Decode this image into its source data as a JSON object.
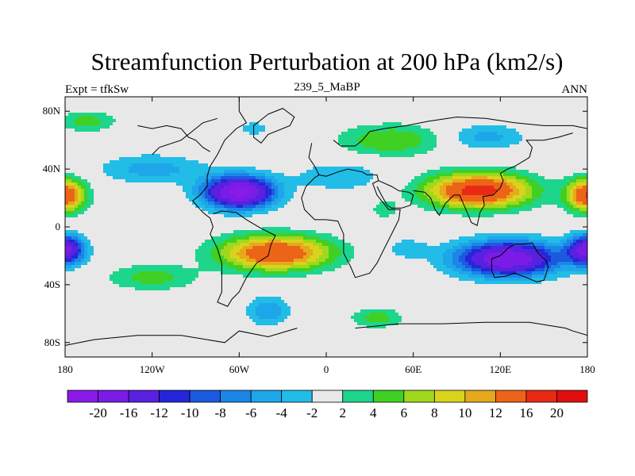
{
  "chart_data": {
    "type": "heatmap",
    "title": "Streamfunction Perturbation at 200 hPa (km2/s)",
    "subtitle_left": "Expt = tfkSw",
    "subtitle_center": "239_5_MaBP",
    "subtitle_right": "ANN",
    "xlim": [
      -180,
      180
    ],
    "ylim": [
      -90,
      90
    ],
    "x_ticks": [
      {
        "value": -180,
        "label": "180"
      },
      {
        "value": -120,
        "label": "120W"
      },
      {
        "value": -60,
        "label": "60W"
      },
      {
        "value": 0,
        "label": "0"
      },
      {
        "value": 60,
        "label": "60E"
      },
      {
        "value": 120,
        "label": "120E"
      },
      {
        "value": 180,
        "label": "180"
      }
    ],
    "y_ticks": [
      {
        "value": 80,
        "label": "80N"
      },
      {
        "value": 40,
        "label": "40N"
      },
      {
        "value": 0,
        "label": "0"
      },
      {
        "value": -40,
        "label": "40S"
      },
      {
        "value": -80,
        "label": "80S"
      }
    ],
    "contour_levels": [
      -20,
      -16,
      -12,
      -10,
      -8,
      -6,
      -4,
      -2,
      2,
      4,
      6,
      8,
      10,
      12,
      16,
      20
    ],
    "colorbar_labels": [
      "-20",
      "-16",
      "-12",
      "-10",
      "-8",
      "-6",
      "-4",
      "-2",
      "2",
      "4",
      "6",
      "8",
      "10",
      "12",
      "16",
      "20"
    ],
    "colorbar_colors": [
      "#8a1ae8",
      "#7a1ce6",
      "#5a20e0",
      "#2426d8",
      "#1a5ae0",
      "#1c86e8",
      "#1ea6ea",
      "#22bde6",
      "#e8e8e8",
      "#1ed58c",
      "#40d024",
      "#a0d81e",
      "#d8d41c",
      "#e6a81c",
      "#ec6418",
      "#e82a14",
      "#e00e0e"
    ],
    "anomalies": [
      {
        "lon": -60,
        "lat": 24,
        "amp": -22,
        "sx": 24,
        "sy": 11
      },
      {
        "lon": 105,
        "lat": 25,
        "amp": 18,
        "sx": 36,
        "sy": 12
      },
      {
        "lon": 125,
        "lat": -22,
        "amp": -20,
        "sx": 35,
        "sy": 12
      },
      {
        "lon": -35,
        "lat": -18,
        "amp": 16,
        "sx": 38,
        "sy": 12
      },
      {
        "lon": -180,
        "lat": 22,
        "amp": 16,
        "sx": 14,
        "sy": 11
      },
      {
        "lon": 180,
        "lat": 22,
        "amp": 16,
        "sx": 14,
        "sy": 11
      },
      {
        "lon": -180,
        "lat": -16,
        "amp": -18,
        "sx": 13,
        "sy": 10
      },
      {
        "lon": 180,
        "lat": -16,
        "amp": -18,
        "sx": 13,
        "sy": 10
      },
      {
        "lon": -165,
        "lat": 73,
        "amp": 5,
        "sx": 20,
        "sy": 7
      },
      {
        "lon": 45,
        "lat": 60,
        "amp": 6,
        "sx": 36,
        "sy": 11
      },
      {
        "lon": 110,
        "lat": 62,
        "amp": -5,
        "sx": 26,
        "sy": 9
      },
      {
        "lon": -50,
        "lat": 68,
        "amp": -3.6,
        "sx": 10,
        "sy": 5
      },
      {
        "lon": -40,
        "lat": -58,
        "amp": -6,
        "sx": 14,
        "sy": 10
      },
      {
        "lon": 35,
        "lat": -63,
        "amp": 5,
        "sx": 18,
        "sy": 7
      },
      {
        "lon": -120,
        "lat": 40,
        "amp": -5,
        "sx": 36,
        "sy": 10
      },
      {
        "lon": 10,
        "lat": 35,
        "amp": -4,
        "sx": 30,
        "sy": 10
      },
      {
        "lon": -120,
        "lat": -35,
        "amp": 5,
        "sx": 30,
        "sy": 9
      },
      {
        "lon": 40,
        "lat": 12,
        "amp": 3,
        "sx": 10,
        "sy": 7
      },
      {
        "lon": 55,
        "lat": -15,
        "amp": -3,
        "sx": 16,
        "sy": 8
      }
    ],
    "coastlines": [
      [
        [
          -60,
          90
        ],
        [
          -60,
          80
        ],
        [
          -55,
          72
        ],
        [
          -62,
          68
        ],
        [
          -70,
          60
        ],
        [
          -75,
          50
        ],
        [
          -80,
          42
        ],
        [
          -82,
          35
        ],
        [
          -82,
          28
        ],
        [
          -87,
          22
        ],
        [
          -92,
          18
        ],
        [
          -85,
          10
        ],
        [
          -80,
          6
        ],
        [
          -78,
          0
        ],
        [
          -80,
          -5
        ],
        [
          -75,
          -15
        ],
        [
          -72,
          -25
        ],
        [
          -72,
          -35
        ],
        [
          -72,
          -45
        ],
        [
          -75,
          -52
        ],
        [
          -68,
          -55
        ],
        [
          -65,
          -50
        ],
        [
          -60,
          -45
        ],
        [
          -55,
          -35
        ],
        [
          -48,
          -25
        ],
        [
          -40,
          -20
        ],
        [
          -38,
          -12
        ],
        [
          -35,
          -6
        ],
        [
          -45,
          -1
        ],
        [
          -55,
          5
        ],
        [
          -62,
          10
        ],
        [
          -72,
          11
        ],
        [
          -78,
          9
        ]
      ],
      [
        [
          -40,
          78
        ],
        [
          -50,
          70
        ],
        [
          -50,
          62
        ],
        [
          -45,
          58
        ],
        [
          -40,
          64
        ],
        [
          -25,
          70
        ],
        [
          -22,
          76
        ],
        [
          -30,
          82
        ],
        [
          -40,
          78
        ]
      ],
      [
        [
          -10,
          58
        ],
        [
          -12,
          48
        ],
        [
          -8,
          42
        ],
        [
          -5,
          36
        ],
        [
          0,
          35
        ],
        [
          8,
          38
        ],
        [
          15,
          40
        ],
        [
          25,
          38
        ],
        [
          28,
          36
        ],
        [
          35,
          36
        ],
        [
          36,
          32
        ],
        [
          32,
          30
        ],
        [
          35,
          22
        ],
        [
          43,
          12
        ],
        [
          51,
          12
        ],
        [
          50,
          5
        ],
        [
          45,
          -5
        ],
        [
          40,
          -15
        ],
        [
          35,
          -25
        ],
        [
          30,
          -32
        ],
        [
          20,
          -35
        ],
        [
          17,
          -28
        ],
        [
          12,
          -18
        ],
        [
          12,
          -5
        ],
        [
          8,
          4
        ],
        [
          0,
          5
        ],
        [
          -8,
          5
        ],
        [
          -15,
          12
        ],
        [
          -17,
          20
        ],
        [
          -14,
          28
        ],
        [
          -8,
          34
        ],
        [
          -5,
          36
        ]
      ],
      [
        [
          5,
          60
        ],
        [
          10,
          56
        ],
        [
          20,
          56
        ],
        [
          25,
          60
        ],
        [
          30,
          66
        ],
        [
          40,
          68
        ],
        [
          55,
          70
        ],
        [
          70,
          73
        ],
        [
          90,
          76
        ],
        [
          110,
          75
        ],
        [
          130,
          72
        ],
        [
          150,
          70
        ],
        [
          170,
          70
        ],
        [
          180,
          68
        ]
      ],
      [
        [
          36,
          32
        ],
        [
          45,
          28
        ],
        [
          50,
          25
        ],
        [
          57,
          24
        ],
        [
          60,
          22
        ],
        [
          58,
          15
        ],
        [
          52,
          13
        ],
        [
          45,
          13
        ],
        [
          42,
          15
        ],
        [
          38,
          22
        ],
        [
          35,
          28
        ]
      ],
      [
        [
          60,
          25
        ],
        [
          68,
          24
        ],
        [
          72,
          20
        ],
        [
          75,
          12
        ],
        [
          78,
          8
        ],
        [
          80,
          12
        ],
        [
          82,
          16
        ],
        [
          88,
          22
        ],
        [
          92,
          22
        ],
        [
          95,
          15
        ],
        [
          98,
          8
        ],
        [
          100,
          3
        ],
        [
          104,
          1
        ],
        [
          106,
          10
        ],
        [
          109,
          15
        ],
        [
          108,
          21
        ],
        [
          115,
          22
        ],
        [
          120,
          27
        ],
        [
          122,
          32
        ],
        [
          120,
          37
        ],
        [
          125,
          40
        ],
        [
          130,
          42
        ],
        [
          140,
          48
        ],
        [
          142,
          55
        ],
        [
          138,
          60
        ],
        [
          150,
          60
        ],
        [
          160,
          62
        ],
        [
          170,
          65
        ]
      ],
      [
        [
          114,
          -22
        ],
        [
          114,
          -30
        ],
        [
          116,
          -35
        ],
        [
          124,
          -34
        ],
        [
          130,
          -32
        ],
        [
          138,
          -35
        ],
        [
          145,
          -38
        ],
        [
          150,
          -37
        ],
        [
          153,
          -28
        ],
        [
          152,
          -24
        ],
        [
          146,
          -18
        ],
        [
          142,
          -11
        ],
        [
          136,
          -12
        ],
        [
          130,
          -12
        ],
        [
          125,
          -15
        ],
        [
          120,
          -20
        ],
        [
          114,
          -22
        ]
      ],
      [
        [
          -20,
          -70
        ],
        [
          -40,
          -76
        ],
        [
          -60,
          -72
        ],
        [
          -70,
          -80
        ],
        [
          -100,
          -75
        ],
        [
          -130,
          -75
        ],
        [
          -160,
          -78
        ],
        [
          -180,
          -82
        ]
      ],
      [
        [
          20,
          -70
        ],
        [
          50,
          -67
        ],
        [
          80,
          -67
        ],
        [
          110,
          -66
        ],
        [
          140,
          -66
        ],
        [
          165,
          -70
        ],
        [
          170,
          -72
        ],
        [
          180,
          -75
        ]
      ],
      [
        [
          -120,
          50
        ],
        [
          -115,
          55
        ],
        [
          -100,
          60
        ],
        [
          -90,
          68
        ],
        [
          -85,
          72
        ],
        [
          -75,
          75
        ]
      ],
      [
        [
          -130,
          70
        ],
        [
          -120,
          68
        ],
        [
          -110,
          70
        ],
        [
          -100,
          68
        ],
        [
          -95,
          62
        ],
        [
          -90,
          60
        ],
        [
          -85,
          55
        ],
        [
          -80,
          52
        ]
      ]
    ]
  }
}
